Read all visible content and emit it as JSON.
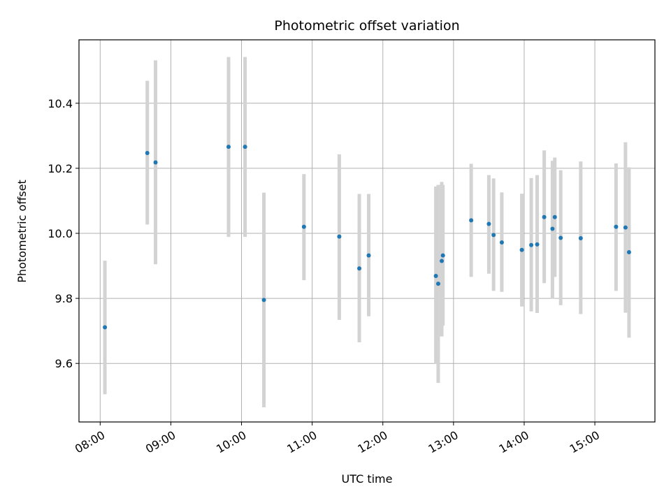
{
  "chart_data": {
    "type": "scatter",
    "title": "Photometric offset variation",
    "xlabel": "UTC time",
    "ylabel": "Photometric offset",
    "x_axis": "time",
    "xlim": [
      "07:42",
      "15:51"
    ],
    "ylim": [
      9.42,
      10.595
    ],
    "x_ticks": [
      "08:00",
      "09:00",
      "10:00",
      "11:00",
      "12:00",
      "13:00",
      "14:00",
      "15:00"
    ],
    "y_ticks": [
      "9.6",
      "9.8",
      "10.0",
      "10.2",
      "10.4"
    ],
    "grid": true,
    "colors": {
      "point": "#1f77b4",
      "errorbar": "#d3d3d3",
      "grid": "#b0b0b0"
    },
    "series": [
      {
        "points": [
          {
            "x": "08:04",
            "y": 9.711,
            "ylo": 9.505,
            "yhi": 9.916
          },
          {
            "x": "08:40",
            "y": 10.247,
            "ylo": 10.027,
            "yhi": 10.469
          },
          {
            "x": "08:47",
            "y": 10.218,
            "ylo": 9.905,
            "yhi": 10.532
          },
          {
            "x": "09:49",
            "y": 10.266,
            "ylo": 9.989,
            "yhi": 10.542
          },
          {
            "x": "10:03",
            "y": 10.266,
            "ylo": 9.989,
            "yhi": 10.542
          },
          {
            "x": "10:19",
            "y": 9.795,
            "ylo": 9.465,
            "yhi": 10.125
          },
          {
            "x": "10:53",
            "y": 10.02,
            "ylo": 9.856,
            "yhi": 10.182
          },
          {
            "x": "11:23",
            "y": 9.99,
            "ylo": 9.734,
            "yhi": 10.243
          },
          {
            "x": "11:40",
            "y": 9.892,
            "ylo": 9.665,
            "yhi": 10.121
          },
          {
            "x": "11:48",
            "y": 9.932,
            "ylo": 9.745,
            "yhi": 10.121
          },
          {
            "x": "12:45",
            "y": 9.869,
            "ylo": 9.598,
            "yhi": 10.144
          },
          {
            "x": "12:47",
            "y": 9.845,
            "ylo": 9.54,
            "yhi": 10.149
          },
          {
            "x": "12:50",
            "y": 9.915,
            "ylo": 9.683,
            "yhi": 10.158
          },
          {
            "x": "12:51",
            "y": 9.932,
            "ylo": 9.716,
            "yhi": 10.149
          },
          {
            "x": "13:15",
            "y": 10.04,
            "ylo": 9.866,
            "yhi": 10.214
          },
          {
            "x": "13:30",
            "y": 10.029,
            "ylo": 9.876,
            "yhi": 10.179
          },
          {
            "x": "13:34",
            "y": 9.995,
            "ylo": 9.823,
            "yhi": 10.169
          },
          {
            "x": "13:41",
            "y": 9.972,
            "ylo": 9.82,
            "yhi": 10.126
          },
          {
            "x": "13:58",
            "y": 9.949,
            "ylo": 9.775,
            "yhi": 10.122
          },
          {
            "x": "14:06",
            "y": 9.964,
            "ylo": 9.76,
            "yhi": 10.17
          },
          {
            "x": "14:11",
            "y": 9.966,
            "ylo": 9.755,
            "yhi": 10.179
          },
          {
            "x": "14:17",
            "y": 10.05,
            "ylo": 9.847,
            "yhi": 10.255
          },
          {
            "x": "14:24",
            "y": 10.014,
            "ylo": 9.799,
            "yhi": 10.223
          },
          {
            "x": "14:26",
            "y": 10.05,
            "ylo": 9.866,
            "yhi": 10.233
          },
          {
            "x": "14:31",
            "y": 9.986,
            "ylo": 9.779,
            "yhi": 10.194
          },
          {
            "x": "14:48",
            "y": 9.985,
            "ylo": 9.752,
            "yhi": 10.221
          },
          {
            "x": "15:18",
            "y": 10.02,
            "ylo": 9.823,
            "yhi": 10.215
          },
          {
            "x": "15:26",
            "y": 10.018,
            "ylo": 9.756,
            "yhi": 10.28
          },
          {
            "x": "15:29",
            "y": 9.942,
            "ylo": 9.679,
            "yhi": 10.203
          }
        ]
      }
    ]
  }
}
